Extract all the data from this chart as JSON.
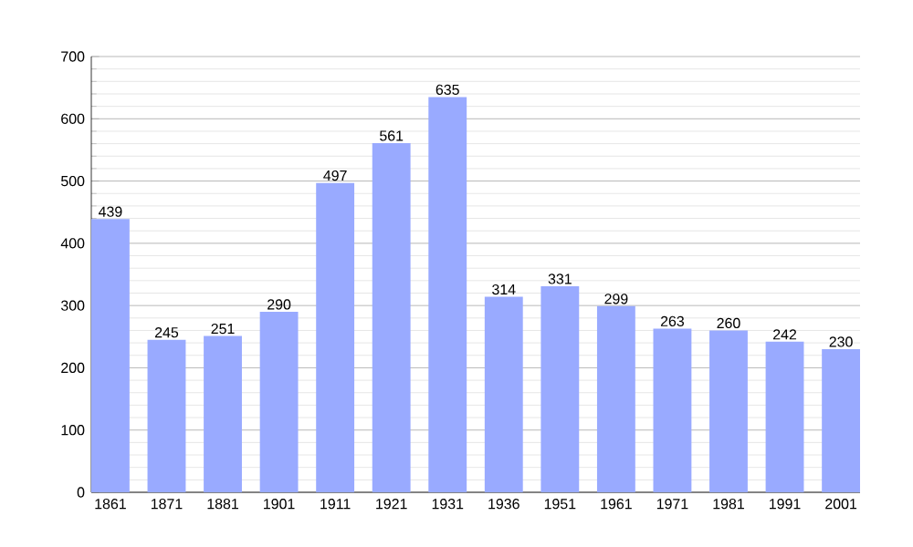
{
  "chart_data": {
    "type": "bar",
    "categories": [
      "1861",
      "1871",
      "1881",
      "1901",
      "1911",
      "1921",
      "1931",
      "1936",
      "1951",
      "1961",
      "1971",
      "1981",
      "1991",
      "2001"
    ],
    "values": [
      439,
      245,
      251,
      290,
      497,
      561,
      635,
      314,
      331,
      299,
      263,
      260,
      242,
      230
    ],
    "color": "#99aaff",
    "ylim": [
      0,
      700
    ],
    "yticks": [
      0,
      100,
      200,
      300,
      400,
      500,
      600,
      700
    ],
    "grid": "y",
    "data_labels": true
  }
}
